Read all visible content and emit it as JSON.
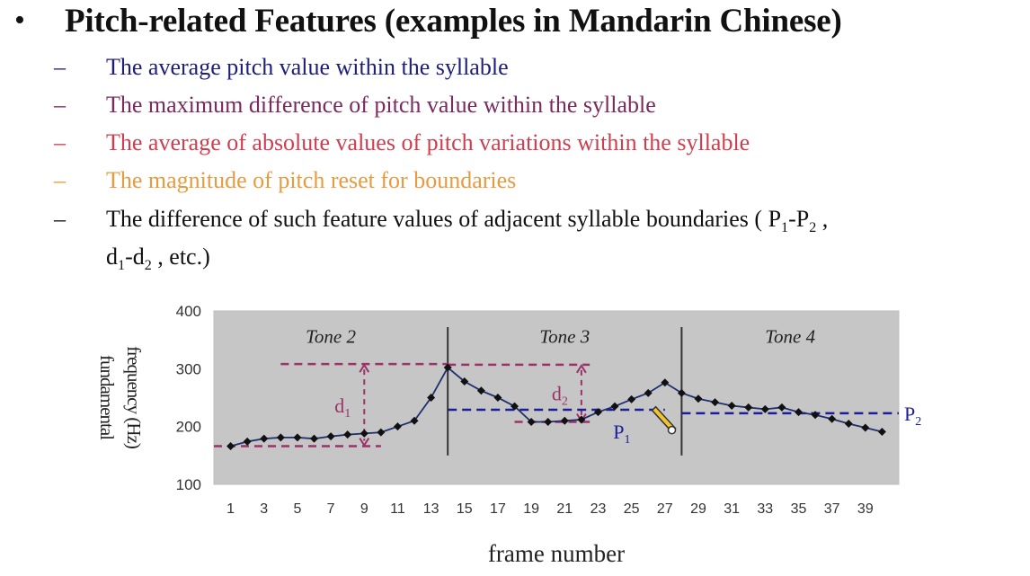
{
  "slide": {
    "bullet": "•",
    "title": "Pitch-related Features (examples in Mandarin Chinese)",
    "items": [
      {
        "dash": "–",
        "text": "The average pitch value within the syllable",
        "color": "#1d1d7a"
      },
      {
        "dash": "–",
        "text": "The maximum difference of pitch value within the syllable",
        "color": "#7a2a5e"
      },
      {
        "dash": "–",
        "text": "The average of absolute values of pitch variations within the syllable",
        "color": "#cf3e4f"
      },
      {
        "dash": "–",
        "text": "The magnitude of pitch reset for boundaries",
        "color": "#e89b3e"
      },
      {
        "dash": "–",
        "text_before": "The difference of such feature values of adjacent syllable boundaries ( P",
        "s1": "1",
        "mid1": "-P",
        "s2": "2",
        "after1": " ,",
        "line2_before": "d",
        "s3": "1",
        "mid2": "-d",
        "s4": "2",
        "after2": " , etc.)",
        "color": "#111111"
      }
    ]
  },
  "chart_data": {
    "type": "line",
    "xlabel": "frame number",
    "ylabel_line1": "fundamental",
    "ylabel_line2": "frequency (Hz)",
    "ylim": [
      100,
      400
    ],
    "xlim": [
      0,
      41
    ],
    "yticks": [
      100,
      200,
      300,
      400
    ],
    "xticks": [
      1,
      3,
      5,
      7,
      9,
      11,
      13,
      15,
      17,
      19,
      21,
      23,
      25,
      27,
      29,
      31,
      33,
      35,
      37,
      39
    ],
    "x": [
      1,
      2,
      3,
      4,
      5,
      6,
      7,
      8,
      9,
      10,
      11,
      12,
      13,
      14,
      15,
      16,
      17,
      18,
      19,
      20,
      21,
      22,
      23,
      24,
      25,
      26,
      27,
      28,
      29,
      30,
      31,
      32,
      33,
      34,
      35,
      36,
      37,
      38,
      39,
      40
    ],
    "y": [
      166,
      174,
      179,
      181,
      181,
      179,
      183,
      186,
      188,
      190,
      200,
      210,
      250,
      302,
      278,
      262,
      250,
      235,
      208,
      208,
      210,
      212,
      225,
      235,
      247,
      258,
      276,
      258,
      248,
      242,
      236,
      233,
      230,
      233,
      225,
      220,
      213,
      205,
      198,
      191
    ],
    "tone_boundaries": [
      14,
      28
    ],
    "tone_labels": [
      {
        "text": "Tone 2",
        "x": 7
      },
      {
        "text": "Tone 3",
        "x": 21
      },
      {
        "text": "Tone 4",
        "x": 34.5
      }
    ],
    "d1": {
      "label": "d",
      "sub": "1",
      "low": 166,
      "high": 308,
      "x": 9,
      "low_range": [
        0,
        10
      ],
      "high_range": [
        4,
        14
      ],
      "color": "#9b3368"
    },
    "d2": {
      "label": "d",
      "sub": "2",
      "low": 208,
      "high": 307,
      "x": 22,
      "low_range": [
        18,
        22.5
      ],
      "high_range": [
        14,
        22.5
      ],
      "color": "#9b3368"
    },
    "P1": {
      "label": "P",
      "sub": "1",
      "value": 229,
      "range": [
        14,
        27
      ]
    },
    "P2": {
      "label": "P",
      "sub": "2",
      "value": 223,
      "range": [
        28,
        41
      ]
    },
    "colors": {
      "plot_bg": "#c6c6c6",
      "line": "#1f2f6f",
      "marker": "#111111",
      "blue_dash": "#1d1d9a",
      "axis_text": "#333333"
    }
  }
}
